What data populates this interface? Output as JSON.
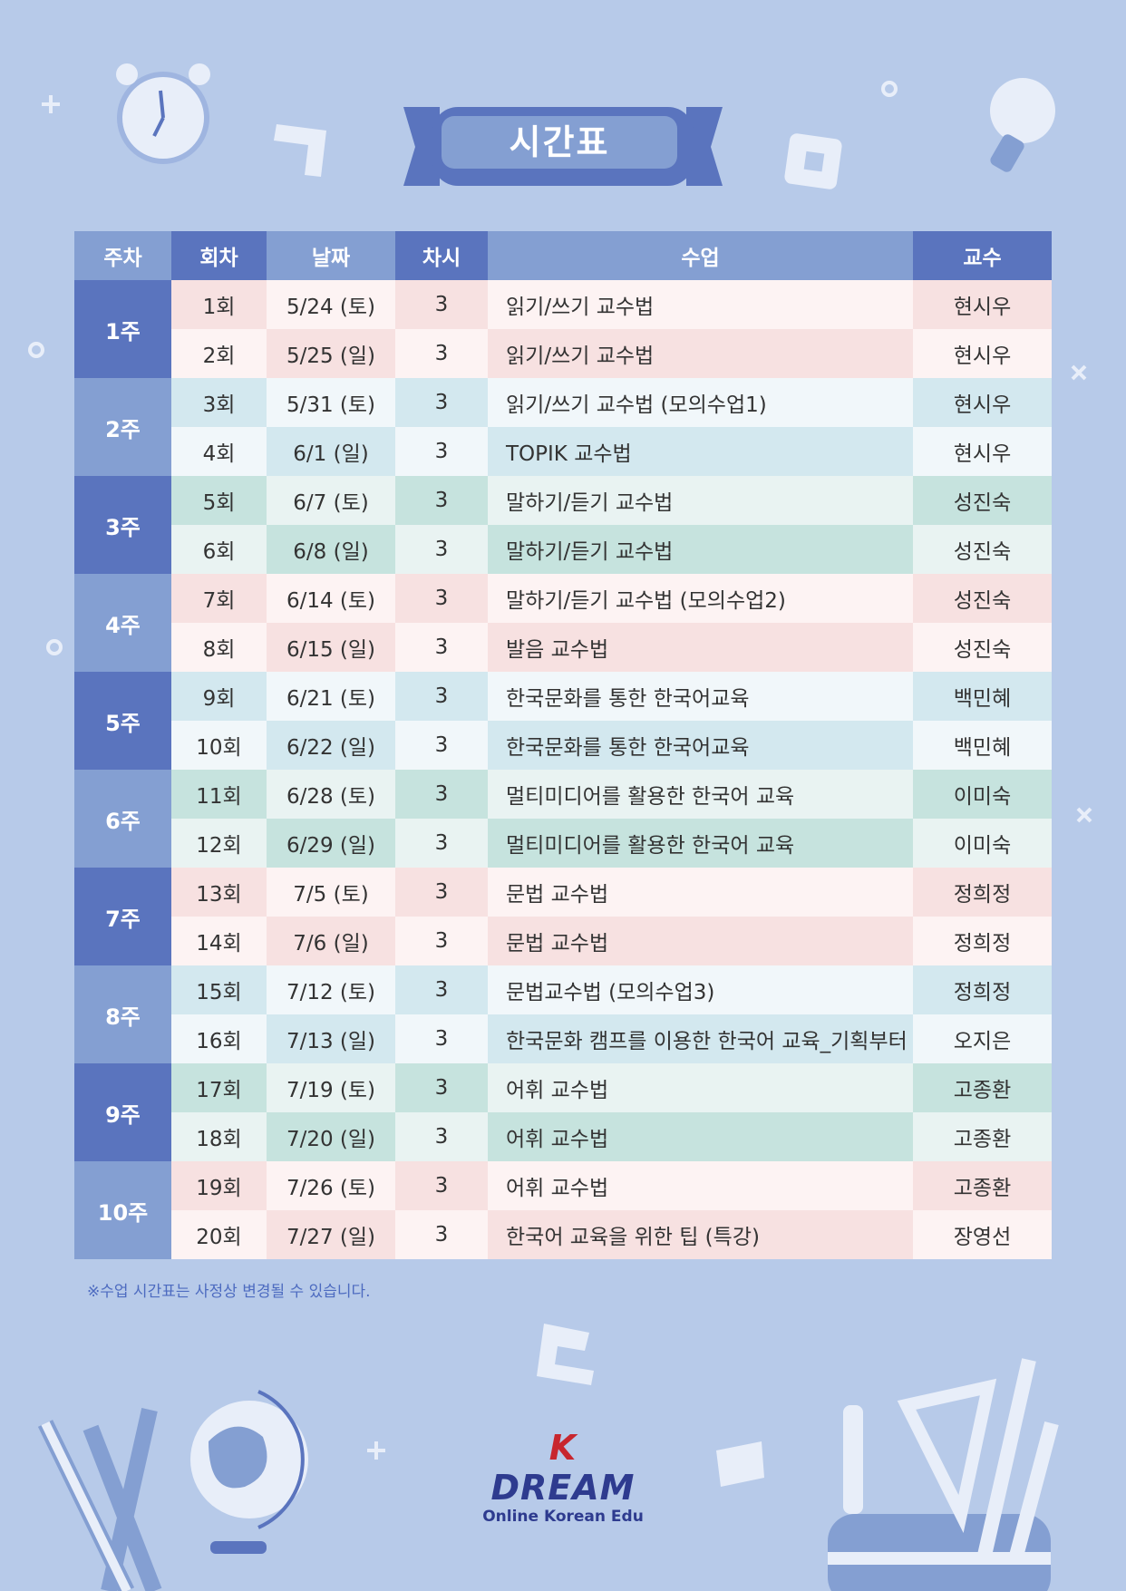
{
  "header": {
    "title": "시간표"
  },
  "table": {
    "headers": [
      "주차",
      "회차",
      "날짜",
      "차시",
      "수업",
      "교수"
    ],
    "weeks": [
      {
        "label": "1주",
        "rows": [
          [
            "1회",
            "5/24 (토)",
            3,
            "읽기/쓰기 교수법",
            "현시우"
          ],
          [
            "2회",
            "5/25 (일)",
            3,
            "읽기/쓰기 교수법",
            "현시우"
          ]
        ]
      },
      {
        "label": "2주",
        "rows": [
          [
            "3회",
            "5/31 (토)",
            3,
            "읽기/쓰기 교수법 (모의수업1)",
            "현시우"
          ],
          [
            "4회",
            "6/1 (일)",
            3,
            "TOPIK 교수법",
            "현시우"
          ]
        ]
      },
      {
        "label": "3주",
        "rows": [
          [
            "5회",
            "6/7 (토)",
            3,
            "말하기/듣기 교수법",
            "성진숙"
          ],
          [
            "6회",
            "6/8 (일)",
            3,
            "말하기/듣기 교수법",
            "성진숙"
          ]
        ]
      },
      {
        "label": "4주",
        "rows": [
          [
            "7회",
            "6/14 (토)",
            3,
            "말하기/듣기 교수법 (모의수업2)",
            "성진숙"
          ],
          [
            "8회",
            "6/15 (일)",
            3,
            "발음 교수법",
            "성진숙"
          ]
        ]
      },
      {
        "label": "5주",
        "rows": [
          [
            "9회",
            "6/21 (토)",
            3,
            "한국문화를 통한 한국어교육",
            "백민혜"
          ],
          [
            "10회",
            "6/22 (일)",
            3,
            "한국문화를 통한 한국어교육",
            "백민혜"
          ]
        ]
      },
      {
        "label": "6주",
        "rows": [
          [
            "11회",
            "6/28 (토)",
            3,
            "멀티미디어를 활용한 한국어 교육",
            "이미숙"
          ],
          [
            "12회",
            "6/29 (일)",
            3,
            "멀티미디어를 활용한 한국어 교육",
            "이미숙"
          ]
        ]
      },
      {
        "label": "7주",
        "rows": [
          [
            "13회",
            "7/5 (토)",
            3,
            "문법 교수법",
            "정희정"
          ],
          [
            "14회",
            "7/6 (일)",
            3,
            "문법 교수법",
            "정희정"
          ]
        ]
      },
      {
        "label": "8주",
        "rows": [
          [
            "15회",
            "7/12 (토)",
            3,
            "문법교수법 (모의수업3)",
            "정희정"
          ],
          [
            "16회",
            "7/13 (일)",
            3,
            "한국문화 캠프를 이용한 한국어 교육_기획부터",
            "오지은"
          ]
        ]
      },
      {
        "label": "9주",
        "rows": [
          [
            "17회",
            "7/19 (토)",
            3,
            "어휘 교수법",
            "고종환"
          ],
          [
            "18회",
            "7/20 (일)",
            3,
            "어휘 교수법",
            "고종환"
          ]
        ]
      },
      {
        "label": "10주",
        "rows": [
          [
            "19회",
            "7/26 (토)",
            3,
            "어휘 교수법",
            "고종환"
          ],
          [
            "20회",
            "7/27 (일)",
            3,
            "한국어 교육을 위한 팁 (특강)",
            "장영선"
          ]
        ]
      }
    ]
  },
  "footnote": "※수업 시간표는 사정상 변경될 수 있습니다.",
  "logo": {
    "name": "K DREAM",
    "tagline": "Online Korean Edu"
  }
}
